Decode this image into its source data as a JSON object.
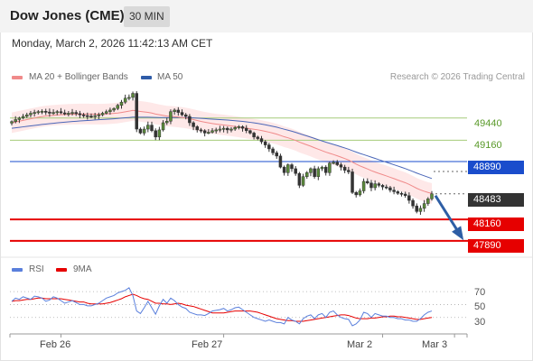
{
  "header": {
    "title": "Dow Jones (CME)",
    "timeframe": "30 MIN",
    "datetime": "Monday, March 2, 2026 11:42:13 AM CET"
  },
  "legend": {
    "ma20": "MA 20 + Bollinger Bands",
    "ma50": "MA 50",
    "credit": "Research © 2026 Trading Central",
    "rsi": "RSI",
    "rsi_ma": "9MA"
  },
  "colors": {
    "ma20": "#f08a8a",
    "ma50": "#4a66b8",
    "bands": "#fde0e0",
    "resistance": "#a6cc7a",
    "pivot": "#1a4dcc",
    "support": "#e60000",
    "last": "#333333",
    "arrow": "#2e5ea5",
    "candle_up": "#5a8a3a",
    "candle_down": "#333333"
  },
  "levels": {
    "r2": "49440",
    "r1": "49160",
    "pivot": "48890",
    "last": "48483",
    "s1": "48160",
    "s2": "47890"
  },
  "x_ticks": [
    "Feb 26",
    "Feb 27",
    "Mar 2",
    "Mar 3"
  ],
  "rsi_ticks": [
    "70",
    "50",
    "30"
  ],
  "chart_data": {
    "type": "candlestick",
    "interval": "30 MIN",
    "ylim": [
      47740,
      49790
    ],
    "close": [
      49395,
      49420,
      49440,
      49460,
      49480,
      49500,
      49510,
      49520,
      49525,
      49515,
      49500,
      49510,
      49520,
      49505,
      49490,
      49500,
      49510,
      49495,
      49480,
      49470,
      49465,
      49460,
      49470,
      49480,
      49500,
      49520,
      49540,
      49560,
      49600,
      49640,
      49690,
      49700,
      49750,
      49300,
      49250,
      49300,
      49350,
      49280,
      49200,
      49290,
      49380,
      49400,
      49520,
      49540,
      49510,
      49480,
      49460,
      49380,
      49330,
      49290,
      49280,
      49250,
      49260,
      49280,
      49290,
      49300,
      49310,
      49290,
      49300,
      49320,
      49330,
      49310,
      49280,
      49250,
      49200,
      49180,
      49140,
      49100,
      49050,
      49000,
      48960,
      48820,
      48750,
      48850,
      48800,
      48740,
      48590,
      48700,
      48750,
      48800,
      48700,
      48800,
      48820,
      48750,
      48870,
      48880,
      48850,
      48820,
      48780,
      48760,
      48500,
      48470,
      48520,
      48640,
      48620,
      48560,
      48610,
      48590,
      48570,
      48560,
      48530,
      48510,
      48490,
      48480,
      48460,
      48400,
      48330,
      48260,
      48300,
      48360,
      48420,
      48483
    ],
    "ma20": [
      49380,
      49390,
      49400,
      49410,
      49420,
      49430,
      49440,
      49450,
      49458,
      49465,
      49470,
      49474,
      49478,
      49481,
      49484,
      49486,
      49488,
      49489,
      49490,
      49490,
      49490,
      49489,
      49488,
      49488,
      49489,
      49491,
      49494,
      49498,
      49503,
      49510,
      49518,
      49526,
      49536,
      49530,
      49523,
      49517,
      49511,
      49502,
      49490,
      49481,
      49472,
      49464,
      49461,
      49458,
      49452,
      49446,
      49440,
      49431,
      49420,
      49408,
      49397,
      49387,
      49378,
      49370,
      49363,
      49357,
      49352,
      49346,
      49340,
      49333,
      49326,
      49319,
      49312,
      49305,
      49298,
      49291,
      49282,
      49272,
      49261,
      49249,
      49236,
      49220,
      49203,
      49190,
      49174,
      49157,
      49136,
      49118,
      49101,
      49084,
      49064,
      49046,
      49028,
      49009,
      48994,
      48979,
      48963,
      48946,
      48928,
      48909,
      48884,
      48858,
      48835,
      48816,
      48797,
      48776,
      48758,
      48741,
      48725,
      48709,
      48692,
      48675,
      48657,
      48640,
      48623,
      48602,
      48578,
      48553,
      48532,
      48515,
      48500,
      48488
    ],
    "ma50": [
      49310,
      49316,
      49322,
      49328,
      49334,
      49340,
      49346,
      49352,
      49358,
      49363,
      49368,
      49373,
      49378,
      49383,
      49387,
      49391,
      49395,
      49399,
      49403,
      49406,
      49409,
      49412,
      49415,
      49418,
      49421,
      49424,
      49427,
      49430,
      49434,
      49438,
      49442,
      49446,
      49451,
      49451,
      49450,
      49450,
      49450,
      49449,
      49447,
      49446,
      49445,
      49444,
      49445,
      49446,
      49446,
      49446,
      49445,
      49443,
      49441,
      49438,
      49435,
      49432,
      49429,
      49426,
      49423,
      49420,
      49417,
      49414,
      49410,
      49406,
      49402,
      49397,
      49391,
      49385,
      49378,
      49371,
      49363,
      49354,
      49345,
      49335,
      49324,
      49311,
      49298,
      49286,
      49273,
      49259,
      49243,
      49228,
      49213,
      49198,
      49182,
      49166,
      49151,
      49135,
      49121,
      49107,
      49092,
      49077,
      49062,
      49046,
      49028,
      49010,
      48993,
      48978,
      48962,
      48946,
      48930,
      48914,
      48898,
      48882,
      48866,
      48850,
      48834,
      48818,
      48801,
      48783,
      48764,
      48745,
      48727,
      48710,
      48693,
      48676
    ],
    "bollinger_width": 130,
    "levels": [
      {
        "type": "resistance",
        "value": 49440
      },
      {
        "type": "resistance",
        "value": 49160
      },
      {
        "type": "pivot",
        "value": 48890
      },
      {
        "type": "last",
        "value": 48483
      },
      {
        "type": "support",
        "value": 48160
      },
      {
        "type": "support",
        "value": 47890
      }
    ],
    "forecast": {
      "from": 48483,
      "to": 47890,
      "direction": "down"
    },
    "x_ticks": [
      {
        "label": "Feb 26",
        "index": 13
      },
      {
        "label": "Feb 27",
        "index": 56
      },
      {
        "label": "Mar 2",
        "index": 98
      },
      {
        "label": "Mar 3",
        "index": 117
      }
    ],
    "rsi": {
      "ylim": [
        10,
        80
      ],
      "ticks": [
        70,
        50,
        30
      ],
      "values": [
        55,
        60,
        58,
        62,
        60,
        58,
        63,
        62,
        60,
        55,
        57,
        62,
        60,
        56,
        52,
        54,
        56,
        53,
        50,
        50,
        48,
        48,
        50,
        52,
        56,
        60,
        62,
        64,
        68,
        70,
        72,
        76,
        64,
        40,
        36,
        45,
        55,
        45,
        35,
        48,
        58,
        52,
        60,
        56,
        50,
        46,
        44,
        38,
        36,
        34,
        34,
        33,
        36,
        40,
        41,
        42,
        44,
        40,
        42,
        45,
        46,
        42,
        38,
        34,
        30,
        28,
        26,
        24,
        26,
        24,
        22,
        22,
        20,
        30,
        26,
        24,
        20,
        28,
        32,
        34,
        28,
        34,
        36,
        30,
        38,
        40,
        34,
        30,
        28,
        27,
        17,
        20,
        26,
        38,
        36,
        30,
        36,
        34,
        32,
        32,
        30,
        30,
        28,
        28,
        26,
        26,
        24,
        24,
        28,
        34,
        38,
        40
      ],
      "ma9": [
        55,
        56,
        56,
        57,
        58,
        58,
        59,
        60,
        60,
        59,
        59,
        59,
        59,
        59,
        58,
        57,
        56,
        55,
        54,
        54,
        52,
        51,
        51,
        51,
        51,
        52,
        53,
        55,
        57,
        59,
        62,
        64,
        66,
        64,
        61,
        59,
        58,
        55,
        52,
        52,
        51,
        51,
        50,
        51,
        52,
        51,
        49,
        48,
        47,
        45,
        43,
        41,
        39,
        37,
        37,
        37,
        37,
        38,
        39,
        40,
        40,
        40,
        40,
        40,
        39,
        38,
        36,
        34,
        32,
        30,
        28,
        27,
        26,
        25,
        25,
        24,
        24,
        24,
        25,
        26,
        27,
        28,
        29,
        30,
        31,
        32,
        33,
        34,
        34,
        33,
        31,
        29,
        28,
        28,
        28,
        29,
        29,
        30,
        31,
        31,
        32,
        32,
        31,
        31,
        30,
        29,
        28,
        27,
        27,
        28,
        29,
        30
      ]
    }
  }
}
